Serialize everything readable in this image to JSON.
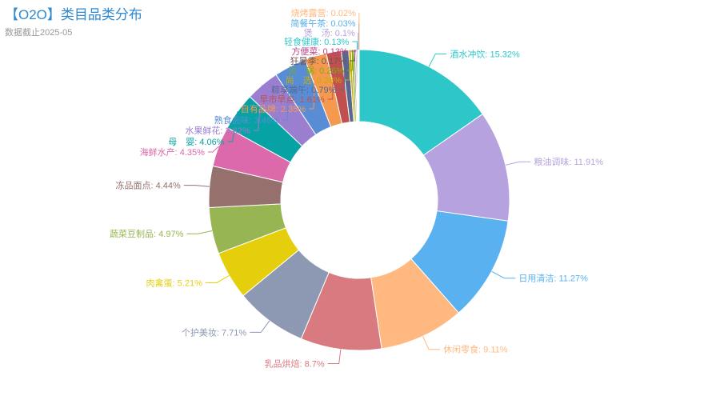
{
  "title": "【O2O】类目品类分布",
  "subtitle": "数据截止2025-05",
  "chart_data": {
    "type": "pie",
    "title": "【O2O】类目品类分布",
    "subtitle": "数据截止2025-05",
    "slices": [
      {
        "label": "酒水冲饮",
        "value": 15.32,
        "display": "15.32%",
        "color": "#2ec7c9"
      },
      {
        "label": "粮油调味",
        "value": 11.91,
        "display": "11.91%",
        "color": "#b6a2de"
      },
      {
        "label": "日用清洁",
        "value": 11.27,
        "display": "11.27%",
        "color": "#5ab1ef"
      },
      {
        "label": "休闲零食",
        "value": 9.11,
        "display": "9.11%",
        "color": "#ffb980"
      },
      {
        "label": "乳品烘焙",
        "value": 8.7,
        "display": "8.7%",
        "color": "#d87a80"
      },
      {
        "label": "个护美妆",
        "value": 7.71,
        "display": "7.71%",
        "color": "#8d98b3"
      },
      {
        "label": "肉禽蛋",
        "value": 5.21,
        "display": "5.21%",
        "color": "#e5cf0d"
      },
      {
        "label": "蔬菜豆制品",
        "value": 4.97,
        "display": "4.97%",
        "color": "#97b552"
      },
      {
        "label": "冻品面点",
        "value": 4.44,
        "display": "4.44%",
        "color": "#95706d"
      },
      {
        "label": "海鲜水产",
        "value": 4.35,
        "display": "4.35%",
        "color": "#dc69aa"
      },
      {
        "label": "母　婴",
        "value": 4.06,
        "display": "4.06%",
        "color": "#07a2a4"
      },
      {
        "label": "水果鲜花",
        "value": 3.62,
        "display": "3.62%",
        "color": "#9a7fd1"
      },
      {
        "label": "熟食卤味",
        "value": 3.46,
        "display": "3.46%",
        "color": "#588dd5"
      },
      {
        "label": "自有品牌",
        "value": 2.35,
        "display": "2.35%",
        "color": "#f5994e"
      },
      {
        "label": "早市早点",
        "value": 1.61,
        "display": "1.61%",
        "color": "#c05050"
      },
      {
        "label": "粽享端午",
        "value": 0.79,
        "display": "0.79%",
        "color": "#59678c"
      },
      {
        "label": "尚　选",
        "value": 0.28,
        "display": "0.28%",
        "color": "#c9ab00"
      },
      {
        "label": "火　锅",
        "value": 0.26,
        "display": "0.26%",
        "color": "#7eb00a"
      },
      {
        "label": "狂暑季",
        "value": 0.17,
        "display": "0.17%",
        "color": "#6f5553"
      },
      {
        "label": "方便菜",
        "value": 0.13,
        "display": "0.13%",
        "color": "#c14089"
      },
      {
        "label": "轻食健康",
        "value": 0.13,
        "display": "0.13%",
        "color": "#2ec7c9"
      },
      {
        "label": "煲　汤",
        "value": 0.1,
        "display": "0.1%",
        "color": "#b6a2de"
      },
      {
        "label": "简餐午茶",
        "value": 0.03,
        "display": "0.03%",
        "color": "#5ab1ef"
      },
      {
        "label": "烧烤露营",
        "value": 0.02,
        "display": "0.02%",
        "color": "#ffb980"
      }
    ]
  }
}
